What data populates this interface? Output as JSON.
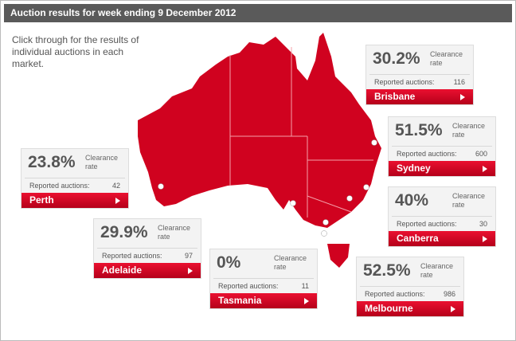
{
  "header": {
    "title": "Auction results for week ending 9 December 2012"
  },
  "intro": "Click through for the results of individual auctions in each market.",
  "markets": [
    {
      "name": "Brisbane",
      "clearance_rate": "30.2%",
      "clearance_label": "Clearance rate",
      "reported_label": "Reported auctions:",
      "reported": 116
    },
    {
      "name": "Sydney",
      "clearance_rate": "51.5%",
      "clearance_label": "Clearance rate",
      "reported_label": "Reported auctions:",
      "reported": 600
    },
    {
      "name": "Perth",
      "clearance_rate": "23.8%",
      "clearance_label": "Clearance rate",
      "reported_label": "Reported auctions:",
      "reported": 42
    },
    {
      "name": "Canberra",
      "clearance_rate": "40%",
      "clearance_label": "Clearance rate",
      "reported_label": "Reported auctions:",
      "reported": 30
    },
    {
      "name": "Adelaide",
      "clearance_rate": "29.9%",
      "clearance_label": "Clearance rate",
      "reported_label": "Reported auctions:",
      "reported": 97
    },
    {
      "name": "Tasmania",
      "clearance_rate": "0%",
      "clearance_label": "Clearance rate",
      "reported_label": "Reported auctions:",
      "reported": 11
    },
    {
      "name": "Melbourne",
      "clearance_rate": "52.5%",
      "clearance_label": "Clearance rate",
      "reported_label": "Reported auctions:",
      "reported": 986
    }
  ]
}
